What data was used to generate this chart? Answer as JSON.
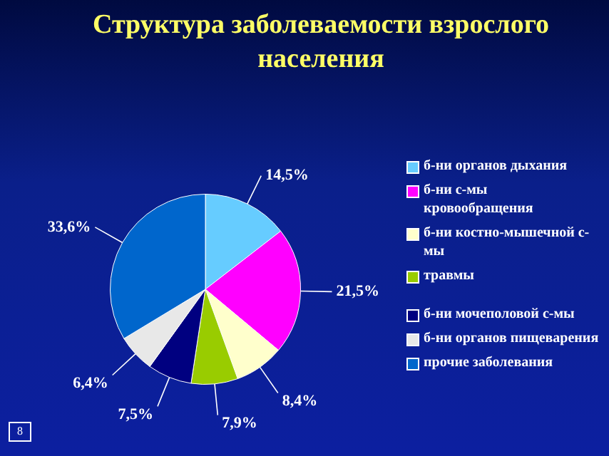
{
  "chart_data": {
    "type": "pie",
    "title": "Структура заболеваемости взрослого населения",
    "categories": [
      "б-ни органов дыхания",
      "б-ни с-мы кровообращения",
      "б-ни костно-мышечной с-мы",
      "травмы",
      "б-ни мочеполовой с-мы",
      "б-ни органов пищеварения",
      "прочие заболевания"
    ],
    "values": [
      14.5,
      21.5,
      8.4,
      7.9,
      7.5,
      6.4,
      33.6
    ],
    "colors": [
      "#66ccff",
      "#ff00ff",
      "#ffffcc",
      "#99cc00",
      "#000080",
      "#e8e8e8",
      "#0066cc"
    ],
    "value_labels": [
      "14,5%",
      "21,5%",
      "8,4%",
      "7,9%",
      "7,5%",
      "6,4%",
      "33,6%"
    ],
    "legend": "right",
    "annotations": [
      "8"
    ]
  }
}
